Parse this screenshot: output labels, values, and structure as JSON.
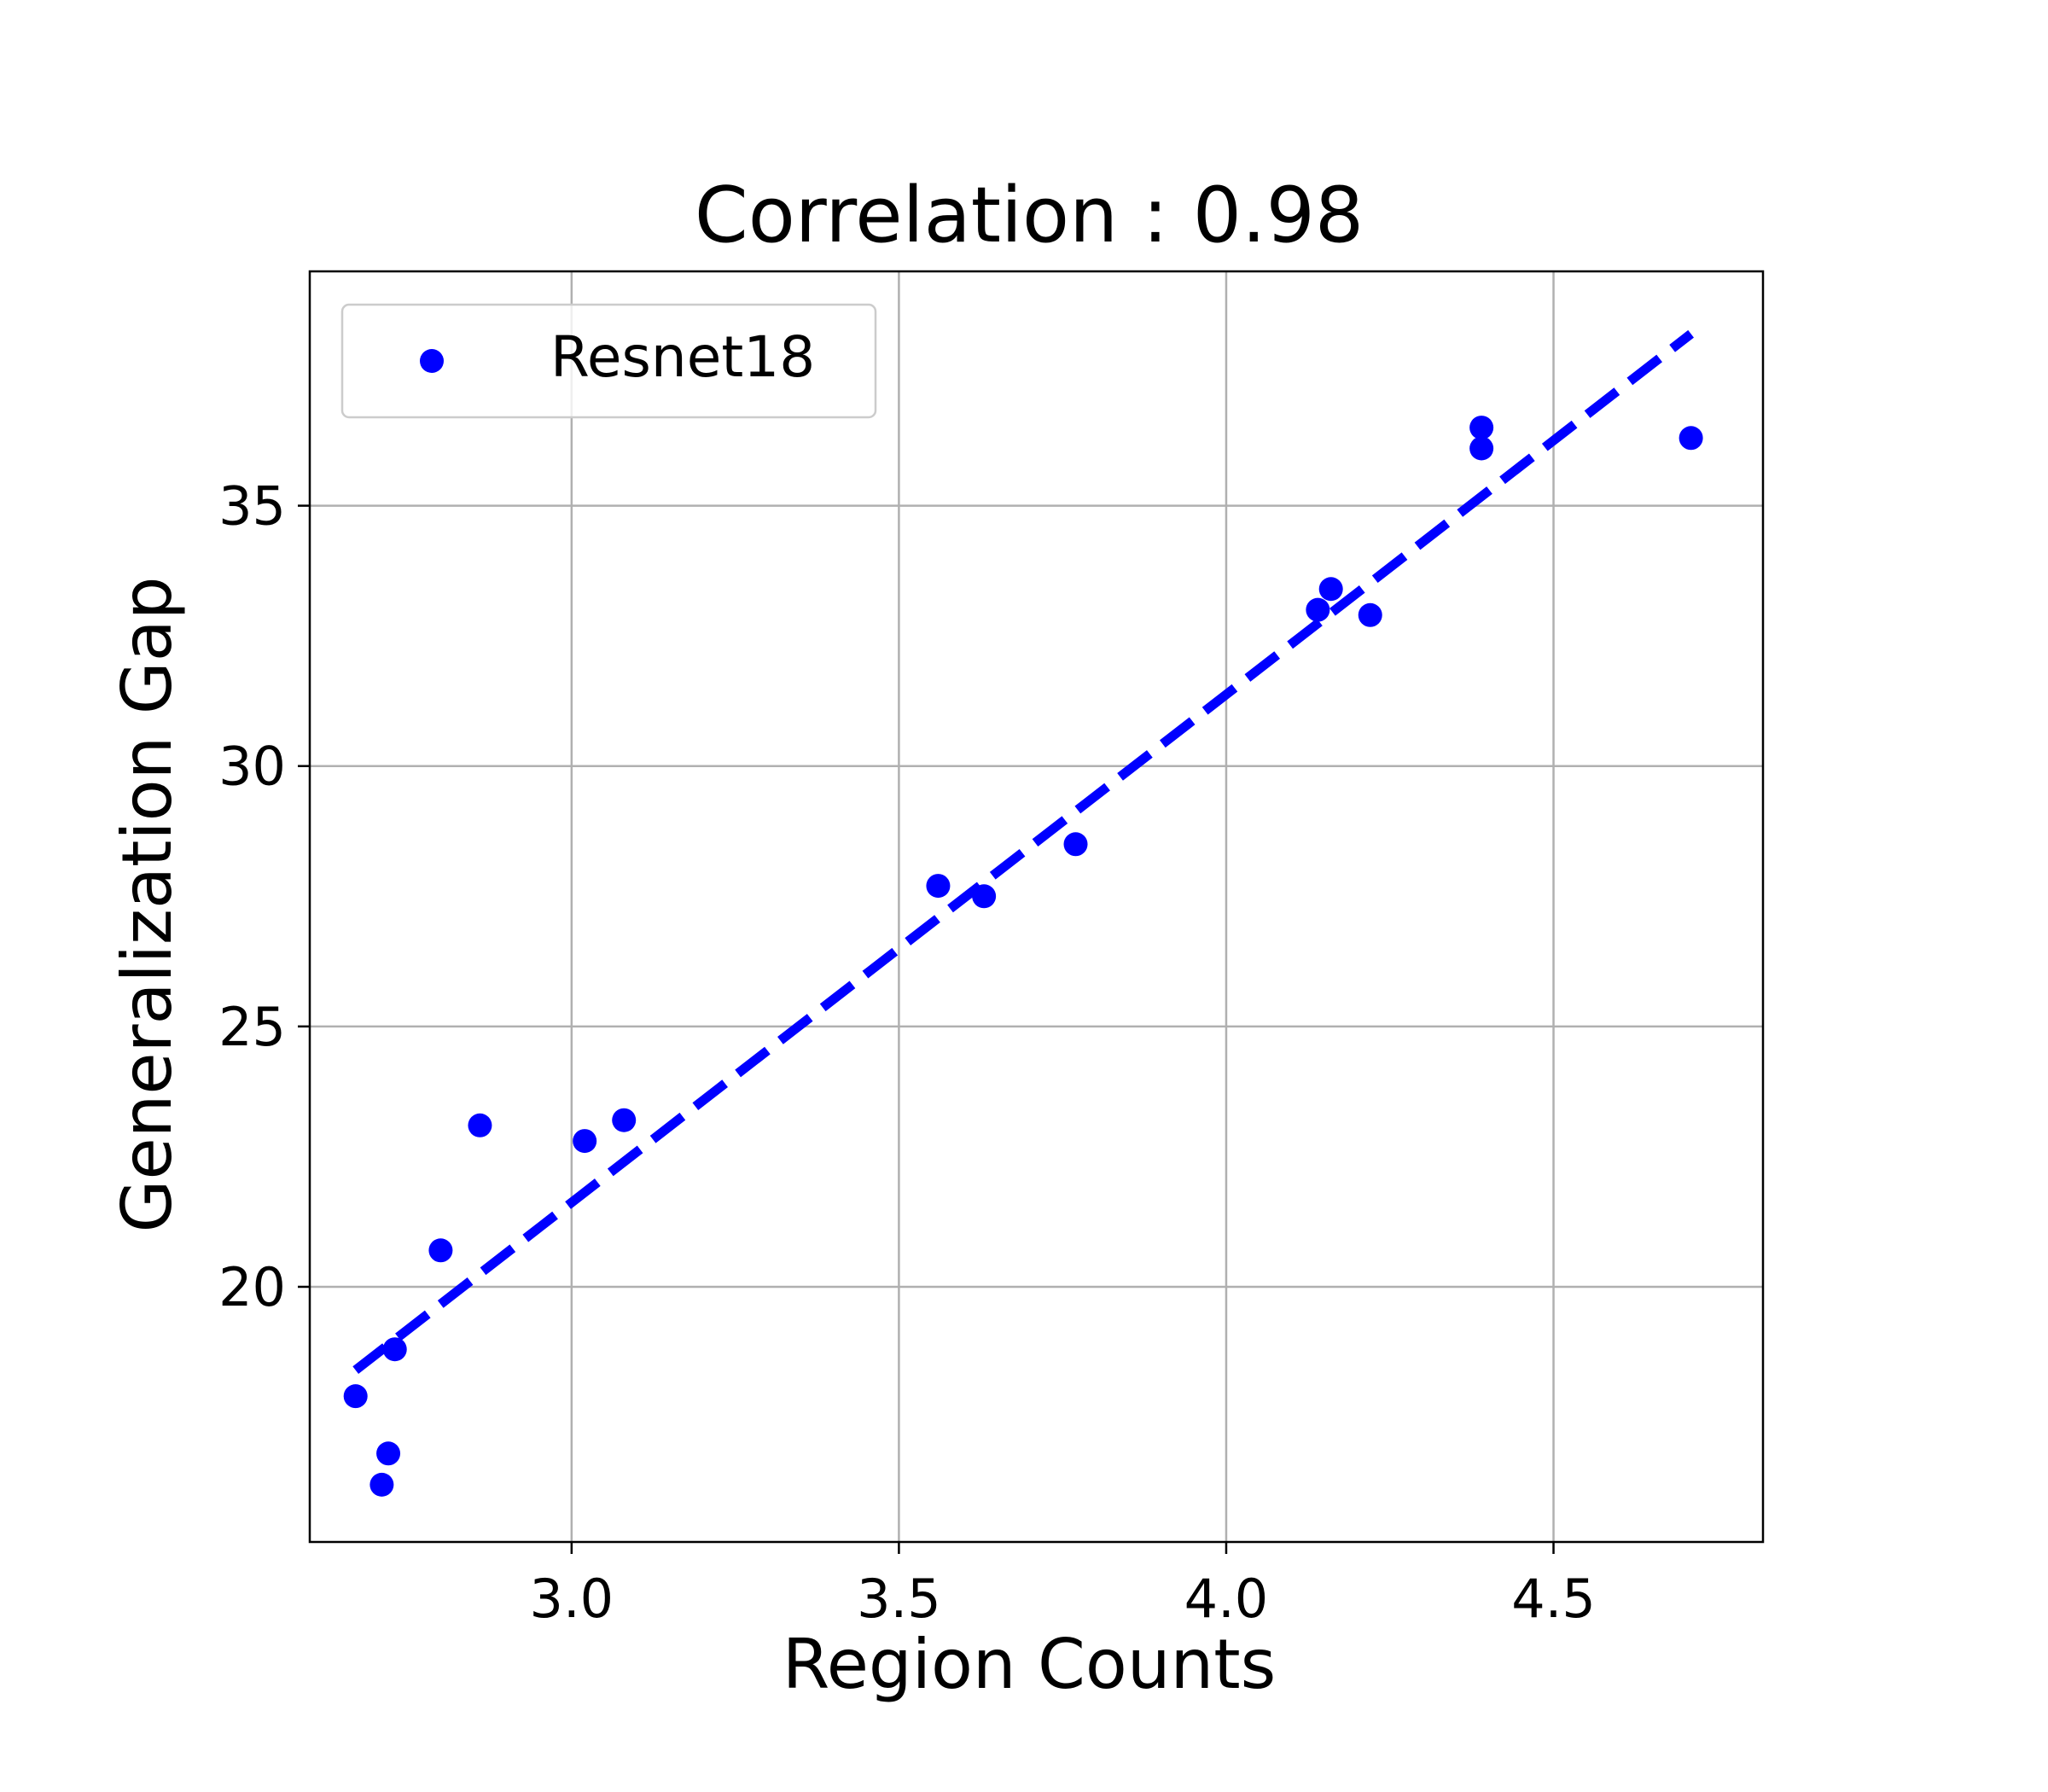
{
  "chart_data": {
    "type": "scatter",
    "title": "Correlation : 0.98",
    "xlabel": "Region Counts",
    "ylabel": "Generalization Gap",
    "xlim": [
      2.6,
      4.82
    ],
    "ylim": [
      15.1,
      39.5
    ],
    "xticks": [
      3.0,
      3.5,
      4.0,
      4.5
    ],
    "xtick_labels": [
      "3.0",
      "3.5",
      "4.0",
      "4.5"
    ],
    "yticks": [
      20,
      25,
      30,
      35
    ],
    "ytick_labels": [
      "20",
      "25",
      "30",
      "35"
    ],
    "grid": true,
    "legend": {
      "placement": "top-left"
    },
    "series": [
      {
        "name": "Resnet18",
        "kind": "scatter",
        "color": "#0000ff",
        "points": [
          {
            "x": 2.67,
            "y": 17.9
          },
          {
            "x": 2.71,
            "y": 16.2
          },
          {
            "x": 2.72,
            "y": 16.8
          },
          {
            "x": 2.73,
            "y": 18.8
          },
          {
            "x": 2.8,
            "y": 20.7
          },
          {
            "x": 2.86,
            "y": 23.1
          },
          {
            "x": 3.02,
            "y": 22.8
          },
          {
            "x": 3.08,
            "y": 23.2
          },
          {
            "x": 3.56,
            "y": 27.7
          },
          {
            "x": 3.63,
            "y": 27.5
          },
          {
            "x": 3.77,
            "y": 28.5
          },
          {
            "x": 4.14,
            "y": 33.0
          },
          {
            "x": 4.16,
            "y": 33.4
          },
          {
            "x": 4.22,
            "y": 32.9
          },
          {
            "x": 4.39,
            "y": 36.5
          },
          {
            "x": 4.39,
            "y": 36.1
          },
          {
            "x": 4.71,
            "y": 36.3
          }
        ]
      },
      {
        "kind": "fit-line",
        "style": "dashed",
        "color": "#0000ff",
        "points": [
          {
            "x": 2.67,
            "y": 18.4
          },
          {
            "x": 4.71,
            "y": 38.3
          }
        ]
      }
    ]
  }
}
